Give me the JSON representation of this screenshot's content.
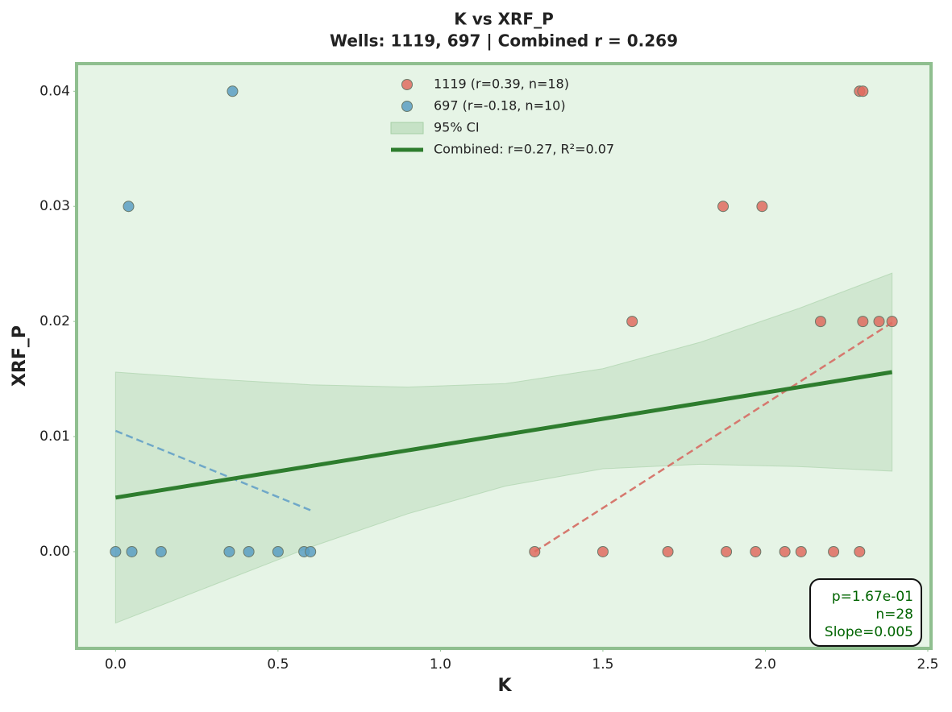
{
  "chart_data": {
    "type": "scatter",
    "title": "K vs XRF_P",
    "subtitle": "Wells: 1119, 697 | Combined r = 0.269",
    "xlabel": "K",
    "ylabel": "XRF_P",
    "xlim": [
      -0.12,
      2.51
    ],
    "ylim": [
      -0.0084,
      0.0424
    ],
    "xticks": [
      {
        "value": 0,
        "label": "0.0"
      },
      {
        "value": 0.5,
        "label": "0.5"
      },
      {
        "value": 1,
        "label": "1.0"
      },
      {
        "value": 1.5,
        "label": "1.5"
      },
      {
        "value": 2,
        "label": "2.0"
      },
      {
        "value": 2.5,
        "label": "2.5"
      }
    ],
    "yticks": [
      {
        "value": 0,
        "label": "0.00"
      },
      {
        "value": 0.01,
        "label": "0.01"
      },
      {
        "value": 0.02,
        "label": "0.02"
      },
      {
        "value": 0.03,
        "label": "0.03"
      },
      {
        "value": 0.04,
        "label": "0.04"
      }
    ],
    "legend": "upper center",
    "series": [
      {
        "name": "1119 (r=0.39, n=18)",
        "color": "#df6b5f",
        "x": [
          1.29,
          1.5,
          1.7,
          1.88,
          1.97,
          2.06,
          2.11,
          2.21,
          2.29,
          1.59,
          1.87,
          1.99,
          2.17,
          2.3,
          2.35,
          2.39,
          2.29,
          2.3
        ],
        "y": [
          0,
          0,
          0,
          0,
          0,
          0,
          0,
          0,
          0,
          0.02,
          0.03,
          0.03,
          0.02,
          0.02,
          0.02,
          0.02,
          0.04,
          0.04
        ]
      },
      {
        "name": "697 (r=-0.18, n=10)",
        "color": "#5b9ec2",
        "x": [
          0.0,
          0.05,
          0.14,
          0.35,
          0.41,
          0.5,
          0.58,
          0.6,
          0.04,
          0.36
        ],
        "y": [
          0,
          0,
          0,
          0,
          0,
          0,
          0,
          0,
          0.03,
          0.04
        ]
      }
    ],
    "fits": [
      {
        "color": "#d6786e",
        "x": [
          1.29,
          2.39
        ],
        "y": [
          0,
          0.0199
        ]
      },
      {
        "color": "#6fa8c8",
        "x": [
          0.0,
          0.6
        ],
        "y": [
          0.0105,
          0.0036
        ]
      }
    ],
    "ci": {
      "name": "95% CI",
      "color": "#a5cfa5",
      "x": [
        0,
        0.3,
        0.6,
        0.9,
        1.2,
        1.5,
        1.8,
        2.1,
        2.39
      ],
      "lower": [
        -0.0062,
        -0.0029,
        0.0004,
        0.0033,
        0.0057,
        0.0072,
        0.0076,
        0.0074,
        0.007
      ],
      "upper": [
        0.0156,
        0.015,
        0.0145,
        0.0143,
        0.0146,
        0.0159,
        0.0182,
        0.0211,
        0.0242
      ]
    },
    "combined": {
      "name": "Combined: r=0.27, R²=0.07",
      "color": "#2e7d2e",
      "x": [
        0,
        2.39
      ],
      "y": [
        0.0047,
        0.0156
      ]
    },
    "annotation": [
      "p=1.67e-01",
      "n=28",
      "Slope=0.005"
    ]
  }
}
